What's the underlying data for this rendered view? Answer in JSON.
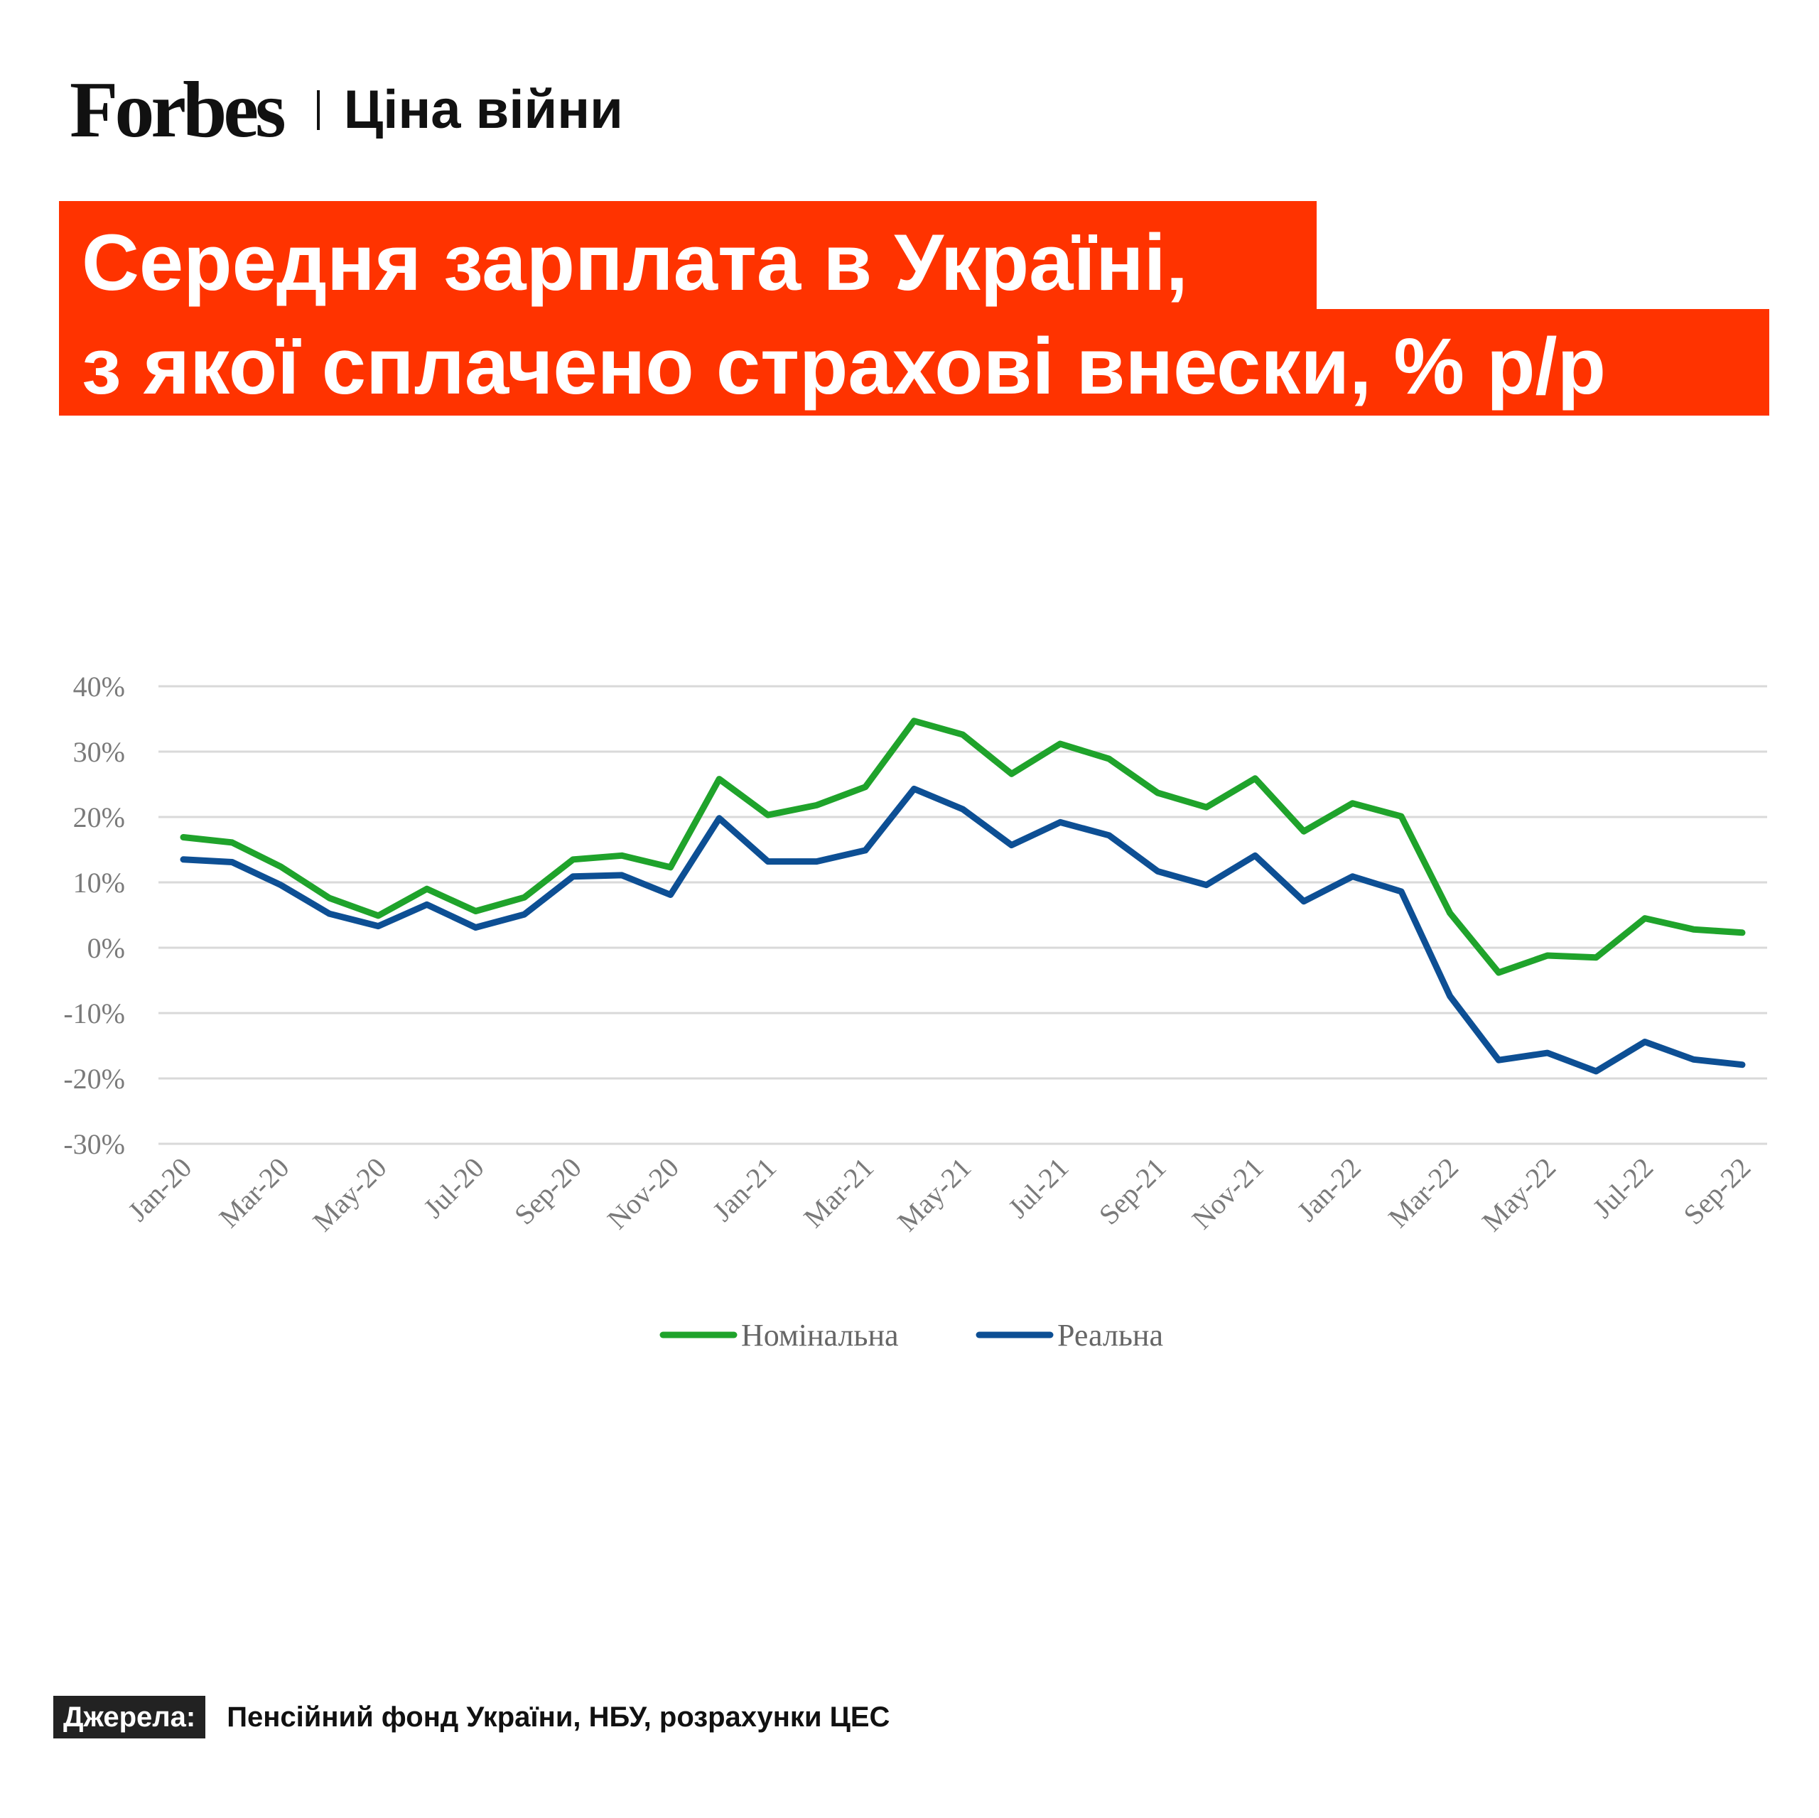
{
  "header": {
    "brand": "Forbes",
    "section": "Ціна війни"
  },
  "title": {
    "line1": "Середня зарплата в Україні,",
    "line2": "з якої сплачено страхові внески, % р/р"
  },
  "colors": {
    "accent": "#ff3300",
    "nominal": "#1fa32b",
    "real": "#0d4f94",
    "grid": "#d9d9d9"
  },
  "chart_data": {
    "type": "line",
    "ylim": [
      -30,
      40
    ],
    "y_ticks": [
      40,
      30,
      20,
      10,
      0,
      -10,
      -20,
      -30
    ],
    "y_tick_labels": [
      "40%",
      "30%",
      "20%",
      "10%",
      "0%",
      "-10%",
      "-20%",
      "-30%"
    ],
    "x": [
      "Jan-20",
      "Feb-20",
      "Mar-20",
      "Apr-20",
      "May-20",
      "Jun-20",
      "Jul-20",
      "Aug-20",
      "Sep-20",
      "Oct-20",
      "Nov-20",
      "Dec-20",
      "Jan-21",
      "Feb-21",
      "Mar-21",
      "Apr-21",
      "May-21",
      "Jun-21",
      "Jul-21",
      "Aug-21",
      "Sep-21",
      "Oct-21",
      "Nov-21",
      "Dec-21",
      "Jan-22",
      "Feb-22",
      "Mar-22",
      "Apr-22",
      "May-22",
      "Jun-22",
      "Jul-22",
      "Aug-22",
      "Sep-22"
    ],
    "x_tick_labels": [
      "Jan-20",
      "Mar-20",
      "May-20",
      "Jul-20",
      "Sep-20",
      "Nov-20",
      "Jan-21",
      "Mar-21",
      "May-21",
      "Jul-21",
      "Sep-21",
      "Nov-21",
      "Jan-22",
      "Mar-22",
      "May-22",
      "Jul-22",
      "Sep-22"
    ],
    "series": [
      {
        "name": "Номінальна",
        "color": "#1fa32b",
        "values": [
          16.9,
          16.1,
          12.4,
          7.6,
          4.9,
          9.0,
          5.6,
          7.7,
          13.5,
          14.1,
          12.3,
          25.8,
          20.3,
          21.8,
          24.6,
          34.7,
          32.6,
          26.6,
          31.2,
          28.9,
          23.7,
          21.5,
          25.9,
          17.8,
          22.1,
          20.1,
          5.3,
          -3.8,
          -1.2,
          -1.5,
          4.5,
          2.8,
          2.3
        ]
      },
      {
        "name": "Реальна",
        "color": "#0d4f94",
        "values": [
          13.5,
          13.1,
          9.6,
          5.2,
          3.3,
          6.6,
          3.1,
          5.1,
          10.9,
          11.1,
          8.1,
          19.8,
          13.2,
          13.2,
          14.9,
          24.3,
          21.2,
          15.7,
          19.2,
          17.2,
          11.7,
          9.6,
          14.1,
          7.1,
          10.9,
          8.6,
          -7.4,
          -17.2,
          -16.1,
          -18.9,
          -14.4,
          -17.1,
          -17.9
        ]
      }
    ]
  },
  "source": {
    "label": "Джерела:",
    "text": "Пенсійний фонд України, НБУ, розрахунки ЦЕС"
  }
}
